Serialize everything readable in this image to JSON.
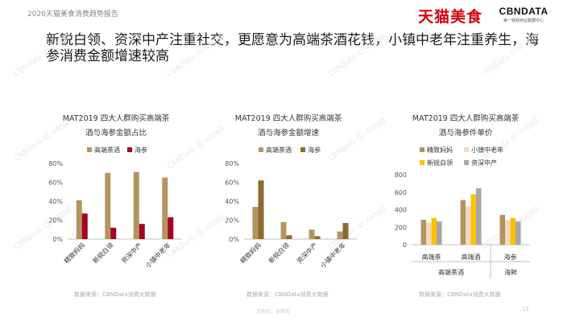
{
  "header": {
    "report_title": "2020天猫美食消费趋势报告",
    "brand_tmall": "天猫美食",
    "brand_cbn": "CBNDATA",
    "brand_cbn_tagline": "第一财经商业数据中心"
  },
  "headline": "新锐白领、资深中产注重社交，更愿意为高端茶酒花钱，小镇中老年注重养生，海参消费金额增速较高",
  "footer": {
    "page": "11",
    "center_note": "文档仅，非商用"
  },
  "watermark": "CBNData ID:49888",
  "colors": {
    "tea_wine": "#b39461",
    "seacucumber_red": "#a50021",
    "seacucumber_brown": "#8c6a30",
    "mom": "#b39461",
    "elder": "#f2d9c4",
    "white_collar": "#ffc000",
    "middle_class": "#a6a6a6"
  },
  "chart_data": [
    {
      "type": "bar",
      "title_lines": [
        "MAT2019 四大人群购买高端茶",
        "酒与海参金额占比"
      ],
      "legend": [
        "高端茶酒",
        "海参"
      ],
      "categories": [
        "精致妈妈",
        "新锐白领",
        "资深中产",
        "小镇中老年"
      ],
      "series": [
        {
          "name": "高端茶酒",
          "values": [
            41,
            70,
            71,
            65
          ]
        },
        {
          "name": "海参",
          "values": [
            27,
            12,
            16,
            23
          ]
        }
      ],
      "ylim": [
        0,
        80
      ],
      "yticks": [
        "0%",
        "20%",
        "40%",
        "60%",
        "80%"
      ],
      "source": "数据来源：CBNData消费大数据"
    },
    {
      "type": "bar",
      "title_lines": [
        "MAT2019 四大人群购买高端茶",
        "酒与海参金额增速"
      ],
      "legend": [
        "高端茶酒",
        "海参"
      ],
      "categories": [
        "精致妈妈",
        "新锐白领",
        "资深中产",
        "小镇中老年"
      ],
      "series": [
        {
          "name": "高端茶酒",
          "values": [
            34,
            18,
            10,
            8
          ]
        },
        {
          "name": "海参",
          "values": [
            62,
            4,
            3,
            17
          ]
        }
      ],
      "ylim": [
        0,
        80
      ],
      "yticks": [
        "0%",
        "20%",
        "40%",
        "60%",
        "80%"
      ],
      "source": "数据来源：CBNData消费大数据"
    },
    {
      "type": "bar",
      "title_lines": [
        "MAT2019 四大人群购买高端茶",
        "酒与海参件单价"
      ],
      "legend": [
        "精致妈妈",
        "小镇中老年",
        "新锐白领",
        "资深中产"
      ],
      "categories": [
        "高端茶",
        "高端酒",
        "海参"
      ],
      "group_labels": [
        "高端茶酒",
        "海鲜"
      ],
      "series": [
        {
          "name": "精致妈妈",
          "values": [
            285,
            510,
            340
          ]
        },
        {
          "name": "小镇中老年",
          "values": [
            250,
            440,
            280
          ]
        },
        {
          "name": "新锐白领",
          "values": [
            305,
            575,
            305
          ]
        },
        {
          "name": "资深中产",
          "values": [
            265,
            645,
            265
          ]
        }
      ],
      "ylim": [
        0,
        800
      ],
      "yticks": [
        "0",
        "200",
        "400",
        "600",
        "800"
      ],
      "source": "数据来源：CBNData消费大数据"
    }
  ]
}
